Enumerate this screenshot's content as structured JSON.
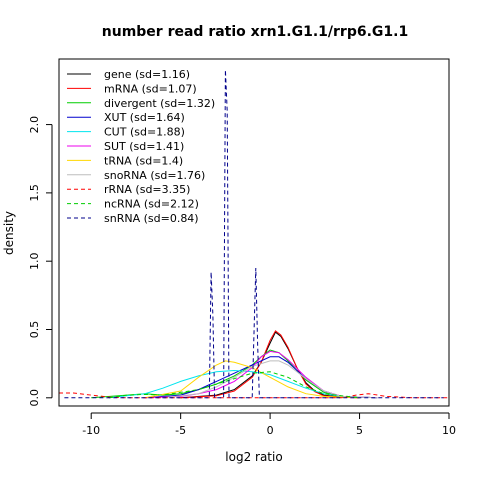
{
  "chart_data": {
    "type": "line",
    "title": "number read ratio xrn1.G1.1/rrp6.G1.1",
    "xlabel": "log2 ratio",
    "ylabel": "density",
    "xlim": [
      -11.8,
      10.0
    ],
    "ylim": [
      -0.06,
      2.48
    ],
    "xticks": [
      -10,
      -5,
      0,
      5,
      10
    ],
    "xtick_labels": [
      "-10",
      "-5",
      "0",
      "5",
      "10"
    ],
    "yticks": [
      0.0,
      0.5,
      1.0,
      1.5,
      2.0
    ],
    "ytick_labels": [
      "0.0",
      "0.5",
      "1.0",
      "1.5",
      "2.0"
    ],
    "legend_position": "top-left",
    "grid": false,
    "series": [
      {
        "name": "gene (sd=1.16)",
        "color": "#000000",
        "dashed": false,
        "x": [
          -5,
          -3,
          -2,
          -1,
          -0.5,
          0,
          0.3,
          0.6,
          1,
          1.5,
          2,
          2.5,
          3,
          4,
          5
        ],
        "y": [
          0,
          0.02,
          0.06,
          0.16,
          0.26,
          0.4,
          0.48,
          0.45,
          0.36,
          0.22,
          0.11,
          0.05,
          0.02,
          0.005,
          0
        ]
      },
      {
        "name": "mRNA (sd=1.07)",
        "color": "#ff0000",
        "dashed": false,
        "x": [
          -5,
          -3,
          -2,
          -1,
          -0.5,
          0,
          0.3,
          0.6,
          1,
          1.5,
          2,
          2.5,
          3,
          4,
          5
        ],
        "y": [
          0,
          0.015,
          0.05,
          0.15,
          0.26,
          0.42,
          0.49,
          0.46,
          0.37,
          0.22,
          0.1,
          0.045,
          0.015,
          0.003,
          0
        ]
      },
      {
        "name": "divergent (sd=1.32)",
        "color": "#00cd00",
        "dashed": false,
        "x": [
          -10,
          -8,
          -7,
          -6,
          -5,
          -4,
          -3,
          -2,
          -1,
          -0.5,
          0,
          0.5,
          1,
          2,
          3,
          4,
          6
        ],
        "y": [
          0,
          0.02,
          0.03,
          0.02,
          0.03,
          0.06,
          0.1,
          0.16,
          0.24,
          0.3,
          0.35,
          0.33,
          0.27,
          0.13,
          0.04,
          0.01,
          0
        ]
      },
      {
        "name": "XUT (sd=1.64)",
        "color": "#0000cd",
        "dashed": false,
        "x": [
          -7,
          -5,
          -4,
          -3,
          -2,
          -1,
          0,
          0.5,
          1,
          2,
          3,
          4,
          6
        ],
        "y": [
          0,
          0.02,
          0.06,
          0.12,
          0.18,
          0.24,
          0.3,
          0.3,
          0.26,
          0.14,
          0.05,
          0.01,
          0
        ]
      },
      {
        "name": "CUT (sd=1.88)",
        "color": "#00e5ee",
        "dashed": false,
        "x": [
          -9,
          -7,
          -6,
          -5,
          -4,
          -3,
          -2,
          -1,
          0,
          1,
          2,
          3,
          4,
          6
        ],
        "y": [
          0,
          0.03,
          0.07,
          0.12,
          0.16,
          0.19,
          0.2,
          0.19,
          0.17,
          0.12,
          0.07,
          0.03,
          0.01,
          0
        ]
      },
      {
        "name": "SUT (sd=1.41)",
        "color": "#ee00ee",
        "dashed": false,
        "x": [
          -7,
          -5,
          -4,
          -3,
          -2,
          -1,
          -0.5,
          0,
          0.5,
          1,
          2,
          3,
          4,
          6
        ],
        "y": [
          0,
          0.01,
          0.03,
          0.06,
          0.12,
          0.22,
          0.3,
          0.34,
          0.33,
          0.28,
          0.15,
          0.05,
          0.01,
          0
        ]
      },
      {
        "name": "tRNA (sd=1.4)",
        "color": "#ffd700",
        "dashed": false,
        "x": [
          -7,
          -5,
          -4,
          -3,
          -2.5,
          -2,
          -1,
          0,
          1,
          2,
          3,
          5
        ],
        "y": [
          0,
          0.05,
          0.15,
          0.24,
          0.27,
          0.26,
          0.22,
          0.15,
          0.08,
          0.03,
          0.01,
          0
        ]
      },
      {
        "name": "snoRNA (sd=1.76)",
        "color": "#bebebe",
        "dashed": false,
        "x": [
          -6,
          -4,
          -3,
          -2,
          -1,
          0,
          0.5,
          1,
          2,
          3,
          4,
          6
        ],
        "y": [
          0,
          0.03,
          0.08,
          0.15,
          0.23,
          0.27,
          0.27,
          0.24,
          0.14,
          0.05,
          0.01,
          0
        ]
      },
      {
        "name": "rRNA (sd=3.35)",
        "color": "#ff0000",
        "dashed": true,
        "x": [
          -11.8,
          -11,
          -10,
          -9,
          -8,
          -6,
          -4,
          -2,
          0,
          2,
          4,
          4.8,
          5.5,
          6.5,
          8,
          10
        ],
        "y": [
          0.035,
          0.035,
          0.02,
          0.005,
          0,
          0,
          0,
          0,
          0,
          0,
          0,
          0.02,
          0.03,
          0.01,
          0,
          0
        ]
      },
      {
        "name": "ncRNA (sd=2.12)",
        "color": "#00cd00",
        "dashed": true,
        "x": [
          -9,
          -8,
          -7,
          -6,
          -5,
          -4,
          -3,
          -2,
          -1,
          0,
          1,
          2,
          3,
          5
        ],
        "y": [
          0,
          0.02,
          0.025,
          0.02,
          0.04,
          0.06,
          0.1,
          0.14,
          0.18,
          0.19,
          0.15,
          0.08,
          0.03,
          0
        ]
      },
      {
        "name": "snRNA (sd=0.84)",
        "color": "#00008b",
        "dashed": true,
        "x": [
          -11.5,
          -4,
          -3.4,
          -3.3,
          -3.2,
          -3.1,
          -2.6,
          -2.5,
          -2.4,
          -2.3,
          -1.0,
          -0.8,
          -0.7,
          -0.6,
          0,
          9.7
        ],
        "y": [
          0,
          0,
          0,
          0.92,
          0.6,
          0,
          0,
          2.4,
          2.1,
          0,
          0,
          0.95,
          0.4,
          0,
          0,
          0
        ]
      }
    ]
  }
}
